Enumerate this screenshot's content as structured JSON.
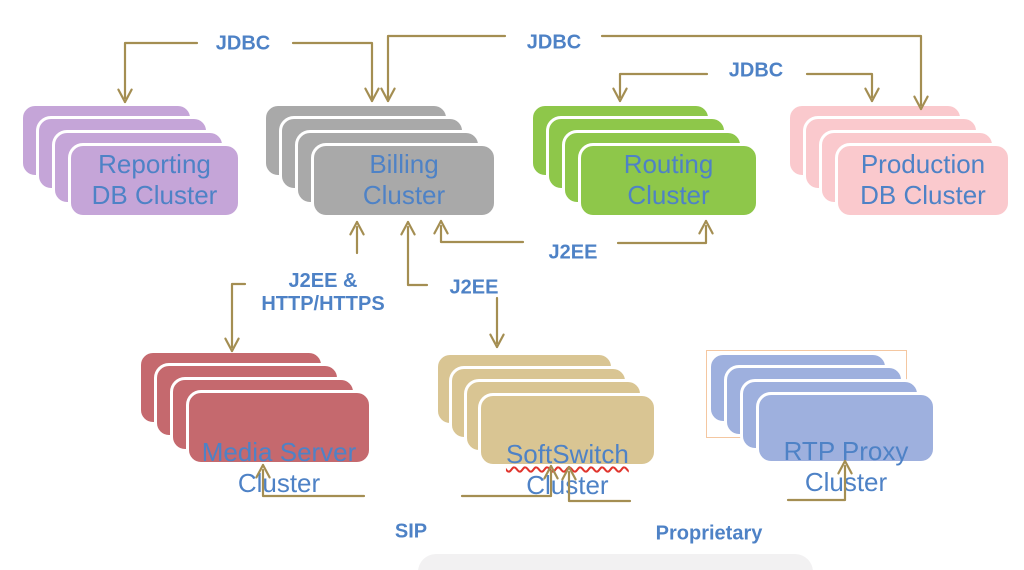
{
  "diagram_title": "",
  "colors": {
    "background": "#ffffff",
    "connector_line": "#a48e52",
    "label_text": "#4e82c6",
    "spellcheck_underline": "#e0342c",
    "highlight_outline": "#f4c7a1"
  },
  "clusters": [
    {
      "id": "reporting-db",
      "label_line1": "Reporting",
      "label_line2": "DB Cluster",
      "color": "#c5a5d8",
      "card_count": 4
    },
    {
      "id": "billing",
      "label_line1": "Billing",
      "label_line2": "Cluster",
      "color": "#a9a9a9",
      "card_count": 4
    },
    {
      "id": "routing",
      "label_line1": "Routing",
      "label_line2": "Cluster",
      "color": "#8ec74a",
      "card_count": 4
    },
    {
      "id": "production-db",
      "label_line1": "Production",
      "label_line2": "DB Cluster",
      "color": "#fac9cd",
      "card_count": 4
    },
    {
      "id": "media-server",
      "label_line1": "Media Server",
      "label_line2": "Cluster",
      "color": "#c5696e",
      "card_count": 4
    },
    {
      "id": "softswitch",
      "label_line1": "SoftSwitch",
      "label_line2": "Cluster",
      "color": "#d9c593",
      "card_count": 4,
      "spellcheck_underline": true
    },
    {
      "id": "rtp-proxy",
      "label_line1": "RTP Proxy",
      "label_line2": "Cluster",
      "color": "#9eb0de",
      "card_count": 4,
      "highlight_outline": true
    }
  ],
  "connections": [
    {
      "id": "jdbc-reporting-billing",
      "label": "JDBC",
      "endpoints": [
        "Reporting DB Cluster",
        "Billing Cluster"
      ],
      "direction": "bidirectional"
    },
    {
      "id": "jdbc-billing-production",
      "label": "JDBC",
      "endpoints": [
        "Billing Cluster",
        "Production DB Cluster"
      ],
      "direction": "bidirectional"
    },
    {
      "id": "jdbc-routing-production",
      "label": "JDBC",
      "endpoints": [
        "Routing Cluster",
        "Production DB Cluster"
      ],
      "direction": "bidirectional"
    },
    {
      "id": "j2ee-billing-routing",
      "label": "J2EE",
      "endpoints": [
        "Billing Cluster",
        "Routing Cluster"
      ],
      "direction": "bidirectional"
    },
    {
      "id": "j2ee-http-billing-media",
      "label": "J2EE &\nHTTP/HTTPS",
      "endpoints": [
        "Billing Cluster",
        "Media Server Cluster"
      ],
      "direction": "bidirectional"
    },
    {
      "id": "j2ee-billing-softswitch",
      "label": "J2EE",
      "endpoints": [
        "Billing Cluster",
        "SoftSwitch Cluster"
      ],
      "direction": "bidirectional"
    },
    {
      "id": "sip-media-softswitch",
      "label": "SIP",
      "endpoints": [
        "Media Server Cluster",
        "SoftSwitch Cluster"
      ],
      "direction": "bidirectional"
    },
    {
      "id": "proprietary-soft-rtp",
      "label": "Proprietary",
      "endpoints": [
        "SoftSwitch Cluster",
        "RTP Proxy Cluster"
      ],
      "direction": "bidirectional"
    }
  ]
}
